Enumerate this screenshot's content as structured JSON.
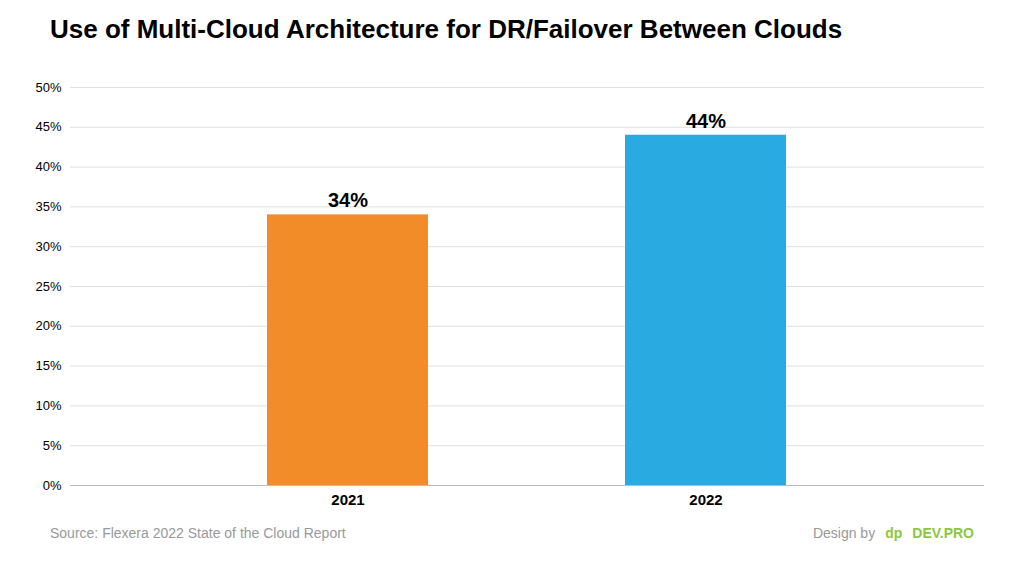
{
  "chart_data": {
    "type": "bar",
    "title": "Use of Multi-Cloud Architecture for DR/Failover Between Clouds",
    "categories": [
      "2021",
      "2022"
    ],
    "values": [
      34,
      44
    ],
    "value_labels": [
      "34%",
      "44%"
    ],
    "colors": [
      "#F28C28",
      "#29ABE2"
    ],
    "ylim": [
      0,
      50
    ],
    "yticks": [
      {
        "value": 0,
        "label": "0%"
      },
      {
        "value": 5,
        "label": "5%"
      },
      {
        "value": 10,
        "label": "10%"
      },
      {
        "value": 15,
        "label": "15%"
      },
      {
        "value": 20,
        "label": "20%"
      },
      {
        "value": 25,
        "label": "25%"
      },
      {
        "value": 30,
        "label": "30%"
      },
      {
        "value": 35,
        "label": "35%"
      },
      {
        "value": 40,
        "label": "40%"
      },
      {
        "value": 45,
        "label": "45%"
      },
      {
        "value": 50,
        "label": "50%"
      }
    ],
    "grid": true,
    "data_labels": true,
    "annotations": [
      {
        "text": "Source: Flexera 2022 State of the Cloud Report"
      },
      {
        "text": "Design by"
      },
      {
        "text": "dp",
        "color": "#8DC63F"
      },
      {
        "text": "DEV.PRO",
        "color": "#8DC63F"
      }
    ]
  }
}
